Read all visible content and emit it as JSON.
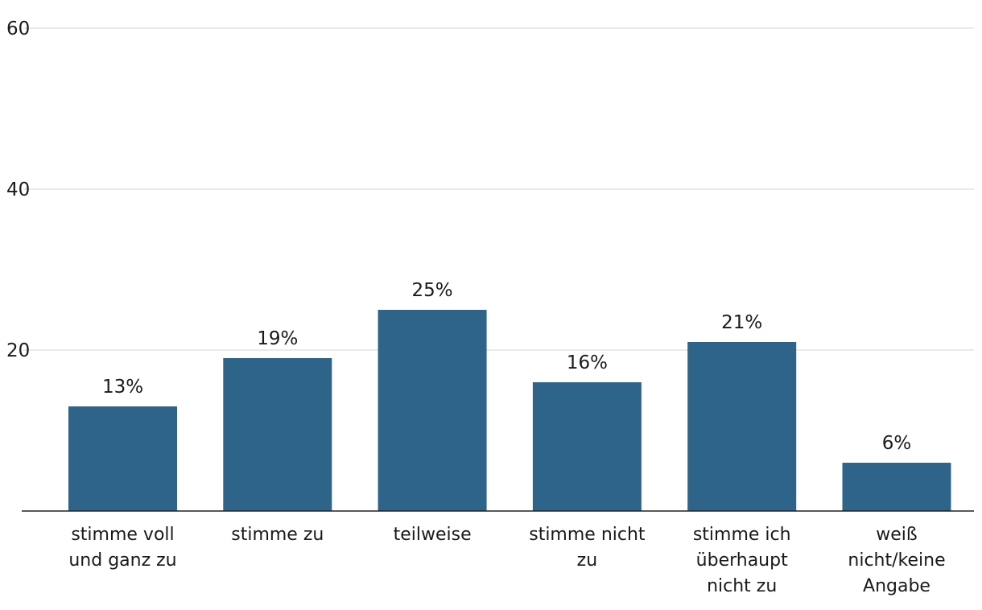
{
  "chart_data": {
    "type": "bar",
    "categories": [
      [
        "stimme voll",
        "und ganz zu"
      ],
      [
        "stimme zu"
      ],
      [
        "teilweise"
      ],
      [
        "stimme nicht",
        "zu"
      ],
      [
        "stimme ich",
        "überhaupt",
        "nicht zu"
      ],
      [
        "weiß",
        "nicht/keine",
        "Angabe"
      ]
    ],
    "values": [
      13,
      19,
      25,
      16,
      21,
      6
    ],
    "value_labels": [
      "13%",
      "19%",
      "25%",
      "16%",
      "21%",
      "6%"
    ],
    "yticks": [
      20,
      40,
      60
    ],
    "ylim": [
      0,
      60
    ],
    "grid": true,
    "bar_color": "#2e6489"
  }
}
